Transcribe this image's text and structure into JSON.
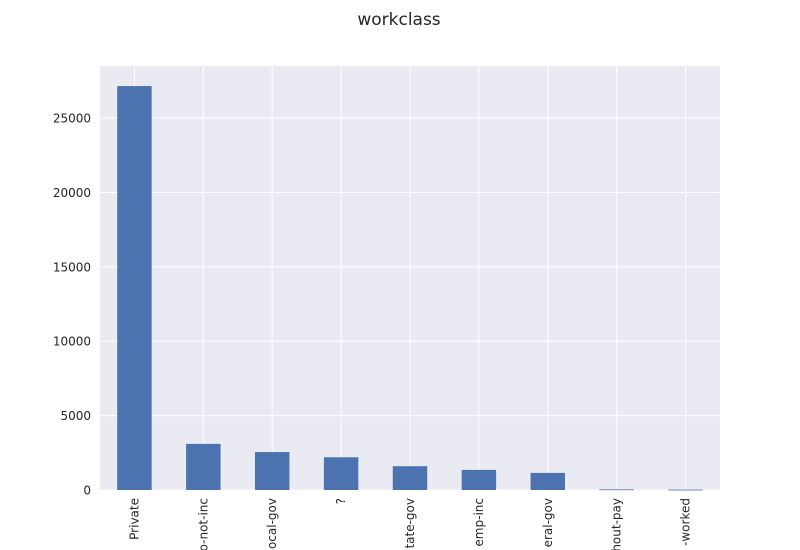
{
  "chart_data": {
    "type": "bar",
    "title": "workclass",
    "xlabel": "",
    "ylabel": "",
    "categories": [
      "Private",
      "Self-emp-not-inc",
      "Local-gov",
      "?",
      "State-gov",
      "Self-emp-inc",
      "Federal-gov",
      "Without-pay",
      "Never-worked"
    ],
    "visible_tick_labels": [
      "Private",
      "o-not-inc",
      "ocal-gov",
      "?",
      "tate-gov",
      "emp-inc",
      "eral-gov",
      "hout-pay",
      "-worked"
    ],
    "values": [
      27150,
      3100,
      2550,
      2200,
      1600,
      1350,
      1150,
      40,
      25
    ],
    "ylim": [
      0,
      28500
    ],
    "yticks": [
      0,
      5000,
      10000,
      15000,
      20000,
      25000
    ],
    "grid": true,
    "bar_color": "#4c72b0",
    "background_color": "#eaeaf2",
    "grid_color": "#ffffff"
  }
}
